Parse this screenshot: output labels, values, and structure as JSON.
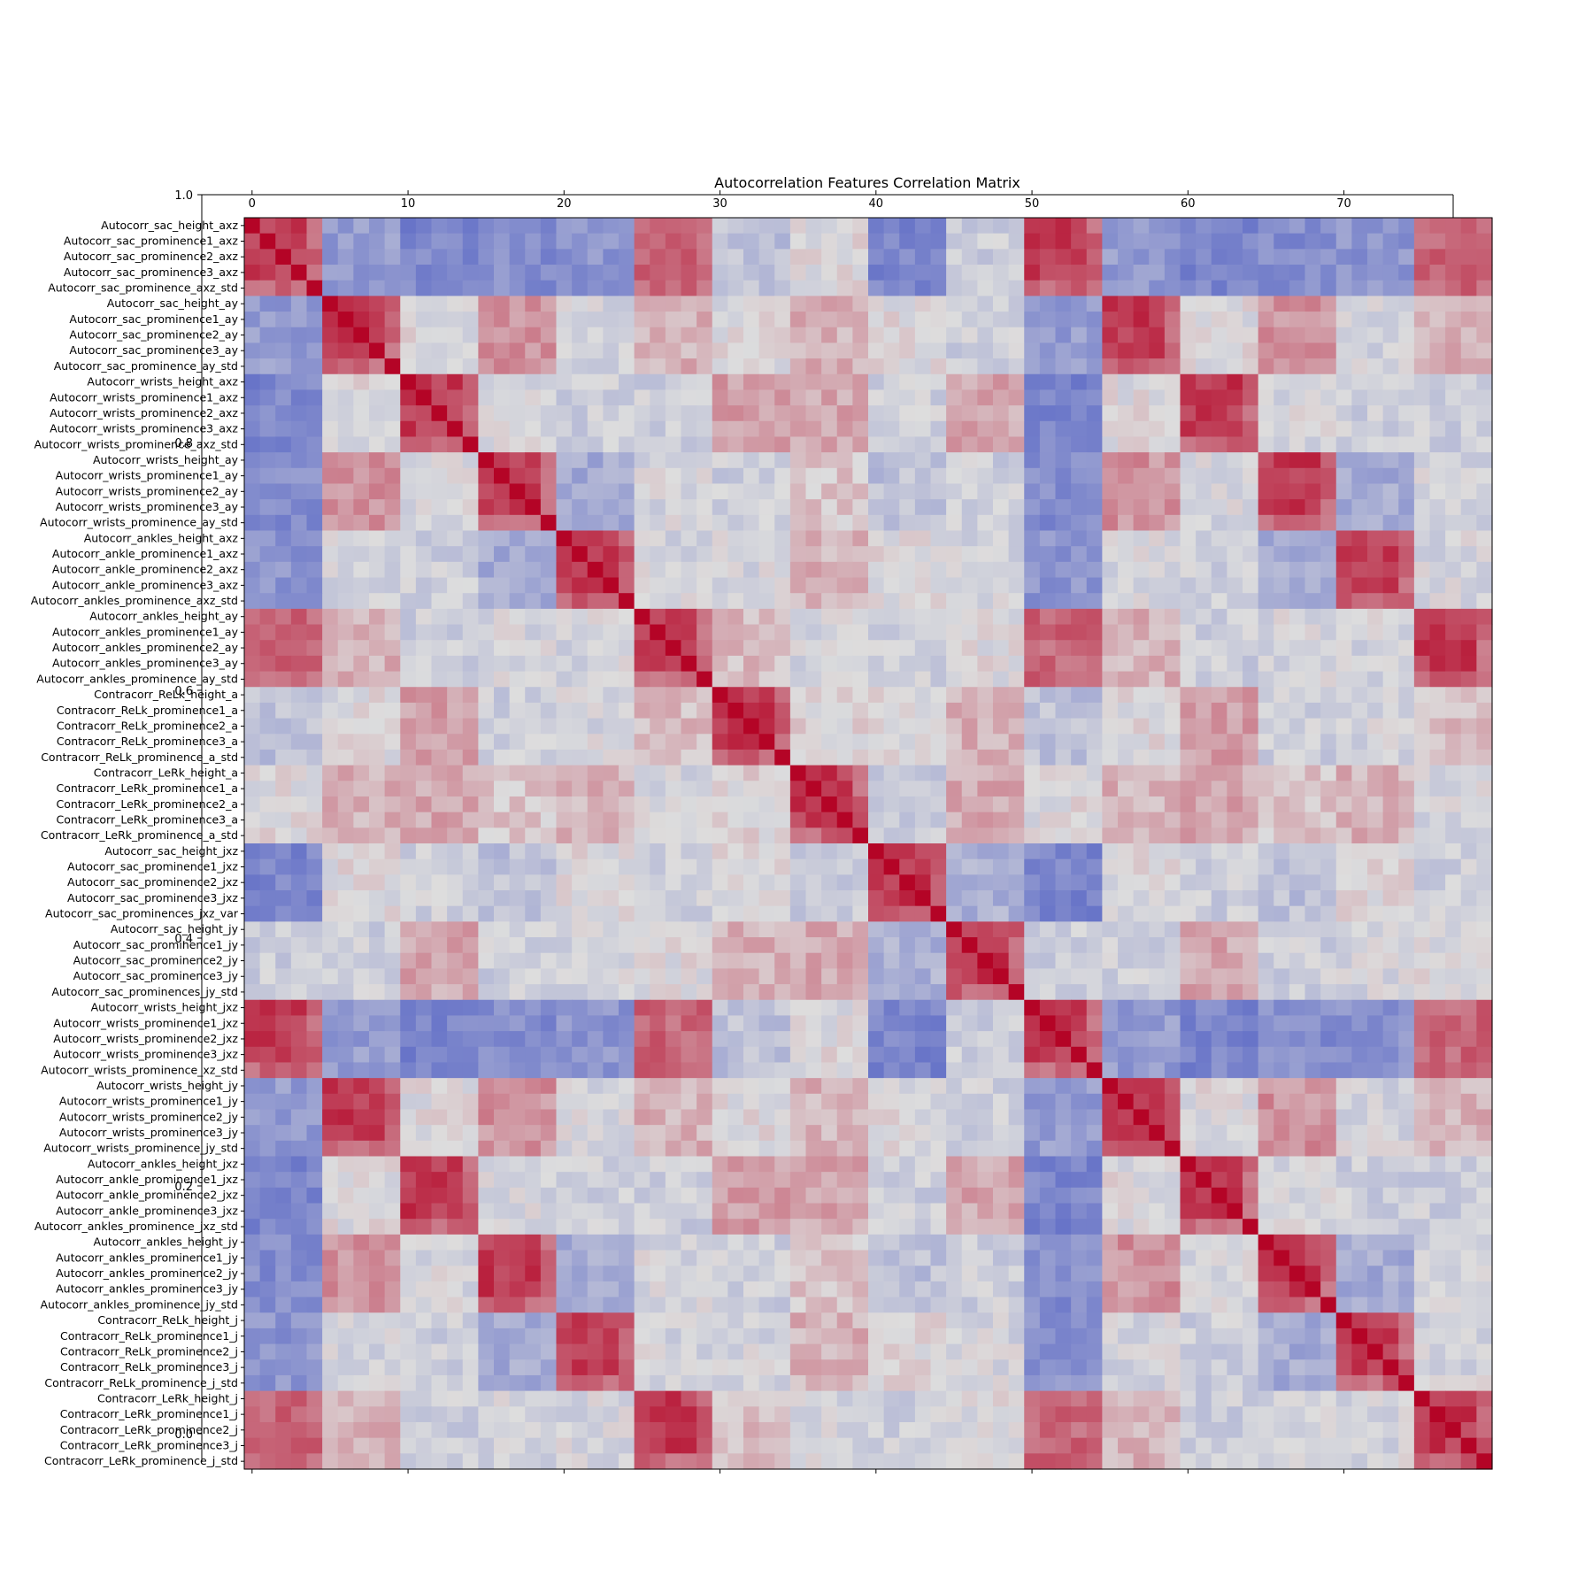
{
  "chart_data": {
    "type": "heatmap",
    "title": "Autocorrelation Features Correlation Matrix",
    "colormap": "coolwarm",
    "colors": {
      "low": "#3b4cc0",
      "mid": "#dddddd",
      "high": "#b40426"
    },
    "value_range": [
      -1,
      1
    ],
    "labels": [
      "Autocorr_sac_height_axz",
      "Autocorr_sac_prominence1_axz",
      "Autocorr_sac_prominence2_axz",
      "Autocorr_sac_prominence3_axz",
      "Autocorr_sac_prominence_axz_std",
      "Autocorr_sac_height_ay",
      "Autocorr_sac_prominence1_ay",
      "Autocorr_sac_prominence2_ay",
      "Autocorr_sac_prominence3_ay",
      "Autocorr_sac_prominence_ay_std",
      "Autocorr_wrists_height_axz",
      "Autocorr_wrists_prominence1_axz",
      "Autocorr_wrists_prominence2_axz",
      "Autocorr_wrists_prominence3_axz",
      "Autocorr_wrists_prominence_axz_std",
      "Autocorr_wrists_height_ay",
      "Autocorr_wrists_prominence1_ay",
      "Autocorr_wrists_prominence2_ay",
      "Autocorr_wrists_prominence3_ay",
      "Autocorr_wrists_prominence_ay_std",
      "Autocorr_ankles_height_axz",
      "Autocorr_ankle_prominence1_axz",
      "Autocorr_ankle_prominence2_axz",
      "Autocorr_ankle_prominence3_axz",
      "Autocorr_ankles_prominence_axz_std",
      "Autocorr_ankles_height_ay",
      "Autocorr_ankles_prominence1_ay",
      "Autocorr_ankles_prominence2_ay",
      "Autocorr_ankles_prominence3_ay",
      "Autocorr_ankles_prominence_ay_std",
      "Contracorr_ReLk_height_a",
      "Contracorr_ReLk_prominence1_a",
      "Contracorr_ReLk_prominence2_a",
      "Contracorr_ReLk_prominence3_a",
      "Contracorr_ReLk_prominence_a_std",
      "Contracorr_LeRk_height_a",
      "Contracorr_LeRk_prominence1_a",
      "Contracorr_LeRk_prominence2_a",
      "Contracorr_LeRk_prominence3_a",
      "Contracorr_LeRk_prominence_a_std",
      "Autocorr_sac_height_jxz",
      "Autocorr_sac_prominence1_jxz",
      "Autocorr_sac_prominence2_jxz",
      "Autocorr_sac_prominence3_jxz",
      "Autocorr_sac_prominences_jxz_var",
      "Autocorr_sac_height_jy",
      "Autocorr_sac_prominence1_jy",
      "Autocorr_sac_prominence2_jy",
      "Autocorr_sac_prominence3_jy",
      "Autocorr_sac_prominences_jy_std",
      "Autocorr_wrists_height_jxz",
      "Autocorr_wrists_prominence1_jxz",
      "Autocorr_wrists_prominence2_jxz",
      "Autocorr_wrists_prominence3_jxz",
      "Autocorr_wrists_prominence_xz_std",
      "Autocorr_wrists_height_jy",
      "Autocorr_wrists_prominence1_jy",
      "Autocorr_wrists_prominence2_jy",
      "Autocorr_wrists_prominence3_jy",
      "Autocorr_wrists_prominence_jy_std",
      "Autocorr_ankles_height_jxz",
      "Autocorr_ankle_prominence1_jxz",
      "Autocorr_ankle_prominence2_jxz",
      "Autocorr_ankle_prominence3_jxz",
      "Autocorr_ankles_prominence_jxz_std",
      "Autocorr_ankles_height_jy",
      "Autocorr_ankles_prominence1_jy",
      "Autocorr_ankles_prominence2_jy",
      "Autocorr_ankles_prominence3_jy",
      "Autocorr_ankles_prominence_jy_std",
      "Contracorr_ReLk_height_j",
      "Contracorr_ReLk_prominence1_j",
      "Contracorr_ReLk_prominence2_j",
      "Contracorr_ReLk_prominence3_j",
      "Contracorr_ReLk_prominence_j_std",
      "Contracorr_LeRk_height_j",
      "Contracorr_LeRk_prominence1_j",
      "Contracorr_LeRk_prominence2_j",
      "Contracorr_LeRk_prominence3_j",
      "Contracorr_LeRk_prominence_j_std"
    ],
    "x_ticks": [
      0,
      10,
      20,
      30,
      40,
      50,
      60,
      70
    ],
    "colorbar_ticks": [
      "0.0",
      "0.2",
      "0.4",
      "0.6",
      "0.8",
      "1.0"
    ],
    "group_size": 5,
    "block_matrix": [
      [
        0.85,
        -0.45,
        -0.6,
        -0.55,
        -0.5,
        0.55,
        -0.2,
        0.0,
        -0.6,
        -0.1
      ],
      [
        -0.45,
        0.85,
        0.0,
        0.35,
        -0.05,
        0.2,
        0.0,
        0.2,
        0.0,
        -0.1
      ],
      [
        -0.6,
        0.0,
        0.85,
        -0.05,
        -0.1,
        -0.1,
        0.3,
        0.25,
        -0.1,
        0.25
      ],
      [
        -0.55,
        0.35,
        -0.05,
        0.85,
        -0.35,
        -0.05,
        -0.1,
        0.1,
        -0.2,
        -0.1
      ],
      [
        -0.5,
        -0.05,
        -0.1,
        -0.35,
        0.85,
        -0.05,
        -0.05,
        0.2,
        0.0,
        -0.05
      ],
      [
        0.55,
        0.2,
        -0.1,
        -0.05,
        -0.05,
        0.85,
        0.15,
        -0.05,
        -0.1,
        0.0
      ],
      [
        -0.2,
        0.0,
        0.3,
        -0.1,
        -0.05,
        0.15,
        0.85,
        0.05,
        0.0,
        0.2
      ],
      [
        0.0,
        0.2,
        0.25,
        0.1,
        0.2,
        -0.05,
        0.05,
        0.85,
        -0.15,
        0.25
      ],
      [
        -0.6,
        0.0,
        -0.1,
        -0.2,
        0.0,
        -0.1,
        0.0,
        -0.15,
        0.7,
        -0.3
      ],
      [
        -0.1,
        -0.1,
        0.25,
        -0.1,
        -0.05,
        0.0,
        0.2,
        0.25,
        -0.3,
        0.85
      ]
    ],
    "matrix_note": ""
  }
}
